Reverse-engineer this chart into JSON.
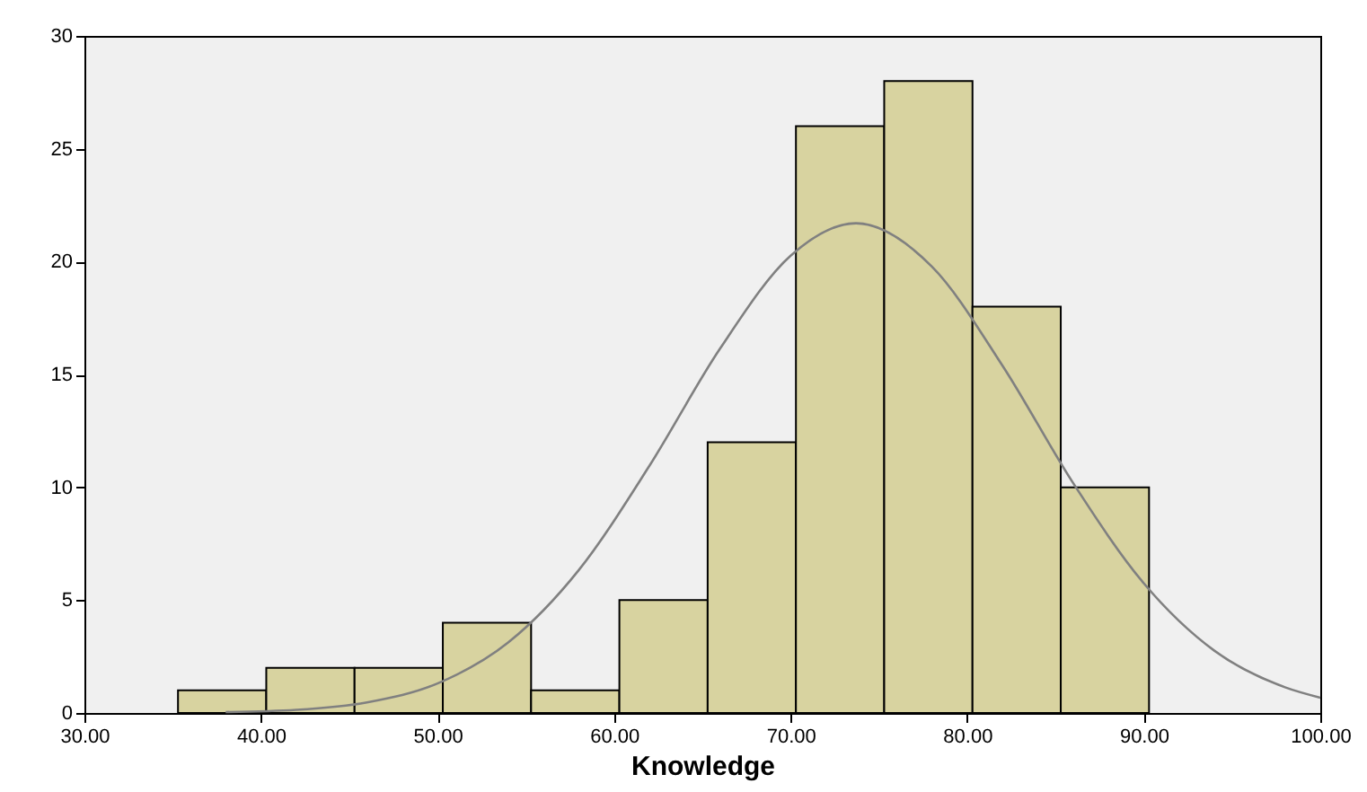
{
  "chart_data": {
    "type": "histogram",
    "xlabel": "Knowledge",
    "bins": [
      35.3,
      40.3,
      45.3,
      50.3,
      55.3,
      60.3,
      65.3,
      70.3,
      75.3,
      80.3,
      85.3,
      90.3
    ],
    "series": [
      {
        "color": "#d8d3a0",
        "values": [
          1,
          2,
          2,
          4,
          1,
          5,
          12,
          26,
          28,
          18,
          10
        ]
      },
      {
        "type": "line",
        "color": "#808080",
        "x": [
          38,
          42,
          46,
          50,
          54,
          58,
          62,
          66,
          70,
          73.7,
          78,
          82,
          86,
          90,
          94,
          98,
          100
        ],
        "values": [
          0.04,
          0.14,
          0.47,
          1.31,
          3.12,
          6.33,
          10.95,
          16.14,
          20.26,
          21.7,
          19.78,
          15.39,
          10.19,
          5.75,
          2.76,
          1.14,
          0.68
        ]
      }
    ],
    "xlim": [
      30,
      100
    ],
    "ylim": [
      0,
      30
    ],
    "xticks": [
      {
        "value": 30,
        "label": "30.00"
      },
      {
        "value": 40,
        "label": "40.00"
      },
      {
        "value": 50,
        "label": "50.00"
      },
      {
        "value": 60,
        "label": "60.00"
      },
      {
        "value": 70,
        "label": "70.00"
      },
      {
        "value": 80,
        "label": "80.00"
      },
      {
        "value": 90,
        "label": "90.00"
      },
      {
        "value": 100,
        "label": "100.00"
      }
    ],
    "yticks": [
      0,
      5,
      10,
      15,
      20,
      25,
      30
    ]
  }
}
